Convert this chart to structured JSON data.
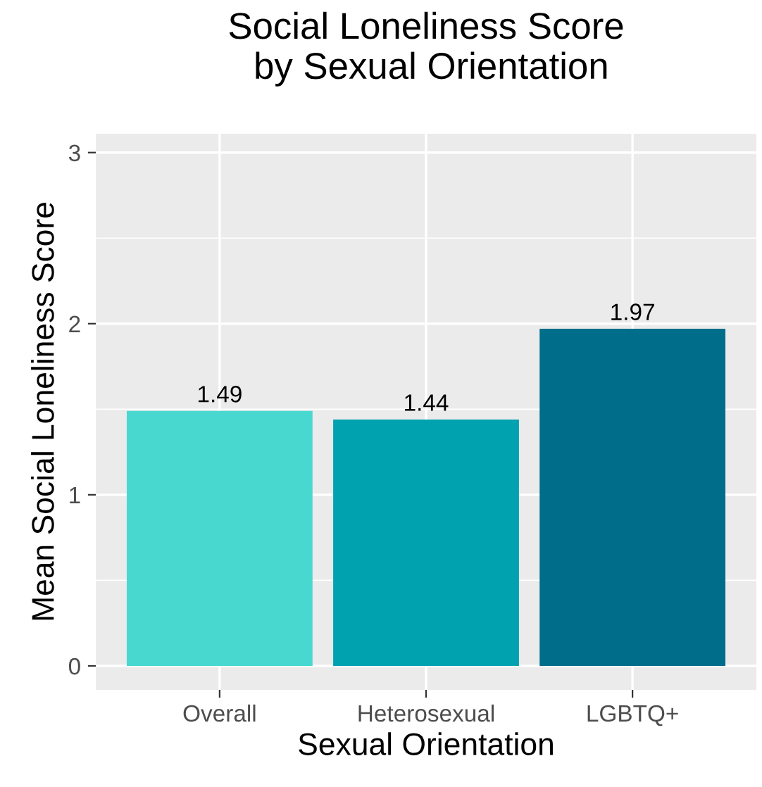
{
  "chart_data": {
    "type": "bar",
    "title": "Social Loneliness Score\n by Sexual Orientation",
    "xlabel": "Sexual Orientation",
    "ylabel": "Mean Social Loneliness Score",
    "categories": [
      "Overall",
      "Heterosexual",
      "LGBTQ+"
    ],
    "values": [
      1.49,
      1.44,
      1.97
    ],
    "colors": [
      "#48d8d0",
      "#00a2b0",
      "#006e8a"
    ],
    "ylim": [
      -0.14,
      3.11
    ],
    "yticks": [
      0,
      1,
      2,
      3
    ],
    "grid": true,
    "data_labels": true
  }
}
